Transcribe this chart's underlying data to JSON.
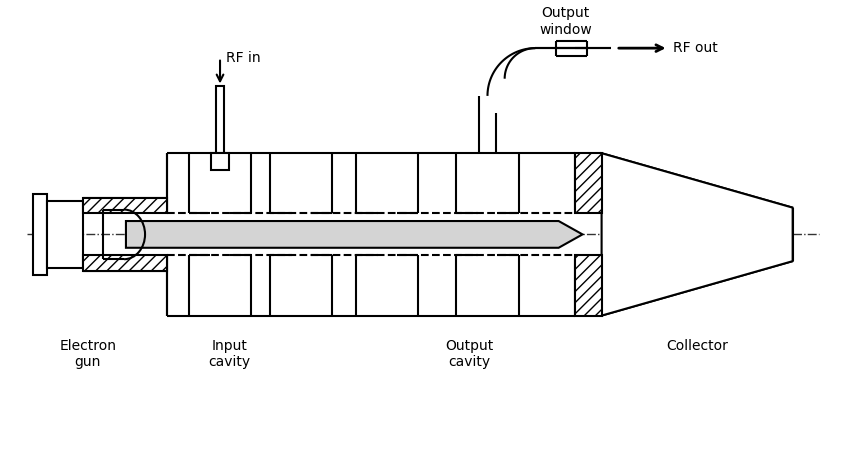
{
  "bg_color": "#ffffff",
  "lc": "#000000",
  "lw": 1.5,
  "fig_width": 8.46,
  "fig_height": 4.54,
  "dpi": 100,
  "labels": {
    "electron_gun": "Electron\ngun",
    "input_cavity": "Input\ncavity",
    "output_cavity": "Output\ncavity",
    "collector": "Collector",
    "rf_in": "RF in",
    "rf_out": "RF out",
    "output_window": "Output\nwindow"
  },
  "beam_color": "#d4d4d4",
  "hatch_color": "#000000"
}
